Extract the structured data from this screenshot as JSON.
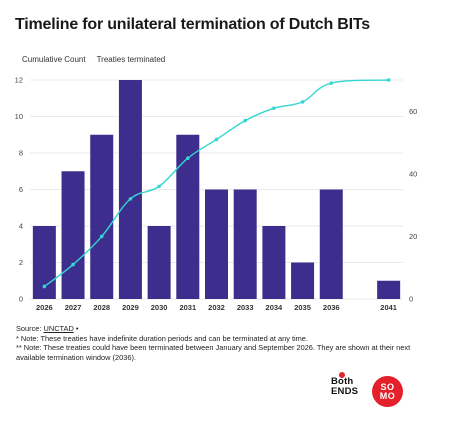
{
  "title": "Timeline for unilateral termination of Dutch BITs",
  "legend": {
    "cumulative": "Cumulative Count",
    "terminated": "Treaties terminated"
  },
  "colors": {
    "bar": "#3d2d8c",
    "line": "#33d6d1",
    "grid": "#e3e3e3"
  },
  "chart_data": {
    "type": "bar",
    "categories": [
      "2026",
      "2027",
      "2028",
      "2029",
      "2030",
      "2031",
      "2032",
      "2033",
      "2034",
      "2035",
      "2036",
      "2041"
    ],
    "series": [
      {
        "name": "Treaties terminated",
        "type": "bar",
        "axis": "left",
        "values": [
          4,
          7,
          9,
          12,
          4,
          9,
          6,
          6,
          4,
          2,
          6,
          1
        ]
      },
      {
        "name": "Cumulative Count",
        "type": "line",
        "axis": "right",
        "values": [
          4,
          11,
          20,
          32,
          36,
          45,
          51,
          57,
          61,
          63,
          69,
          70
        ]
      }
    ],
    "ylim_left": [
      0,
      12
    ],
    "yticks_left": [
      "0",
      "2",
      "4",
      "6",
      "8",
      "10",
      "12"
    ],
    "ylim_right": [
      0,
      70
    ],
    "yticks_right": [
      "0",
      "20",
      "40",
      "60"
    ],
    "grid": true
  },
  "notes": {
    "source_prefix": "Source: ",
    "source_link": "UNCTAD",
    "source_suffix": " •",
    "note1": "* Note: These treaties have indefinite duration periods and can be terminated at any time.",
    "note2": "** Note: These treaties could have been terminated between January and September 2026. They are shown at their next available termination window (2036)."
  },
  "logos": {
    "bothends_line1": "Both",
    "bothends_line2": "ENDS",
    "somo_line1": "SO",
    "somo_line2": "MO"
  }
}
